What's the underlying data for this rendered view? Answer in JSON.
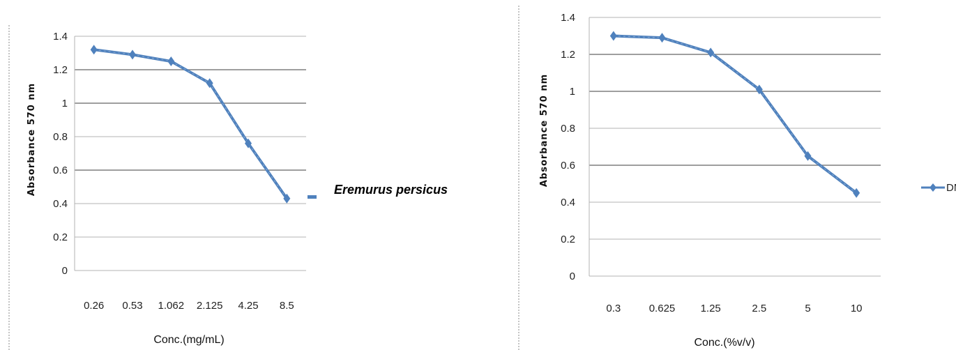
{
  "chart_data": [
    {
      "type": "line",
      "categories": [
        "0.26",
        "0.53",
        "1.062",
        "2.125",
        "4.25",
        "8.5"
      ],
      "series": [
        {
          "name": "Eremurus persicus",
          "values": [
            1.32,
            1.29,
            1.25,
            1.12,
            0.76,
            0.43
          ]
        }
      ],
      "title": "",
      "xlabel": "Conc.(mg/mL)",
      "ylabel": "Absorbance 570 nm",
      "ylim": [
        0,
        1.4
      ],
      "yticks": [
        "0",
        "0.2",
        "0.4",
        "0.6",
        "0.8",
        "1",
        "1.2",
        "1.4"
      ],
      "grid": true,
      "legend_position": "right",
      "color": "#4f81bd"
    },
    {
      "type": "line",
      "categories": [
        "0.3",
        "0.625",
        "1.25",
        "2.5",
        "5",
        "10"
      ],
      "series": [
        {
          "name": "DMSO",
          "values": [
            1.3,
            1.29,
            1.21,
            1.01,
            0.65,
            0.45
          ]
        }
      ],
      "title": "",
      "xlabel": "Conc.(%v/v)",
      "ylabel": "Absorbance 570 nm",
      "ylim": [
        0,
        1.4
      ],
      "yticks": [
        "0",
        "0.2",
        "0.4",
        "0.6",
        "0.8",
        "1",
        "1.2",
        "1.4"
      ],
      "grid": true,
      "legend_position": "right",
      "color": "#4f81bd"
    }
  ]
}
